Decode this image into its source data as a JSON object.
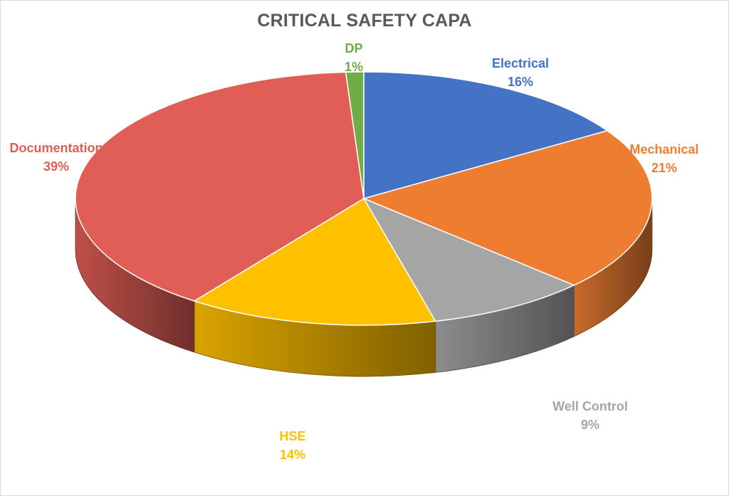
{
  "chart_data": {
    "type": "pie",
    "title": "CRITICAL SAFETY CAPA",
    "style": "3d",
    "labels_show": [
      "category",
      "percent"
    ],
    "slices": [
      {
        "label": "Electrical",
        "percent": "16%",
        "value": 16,
        "color": "#4472c4"
      },
      {
        "label": "Mechanical",
        "percent": "21%",
        "value": 21,
        "color": "#ed7d31"
      },
      {
        "label": "Well Control",
        "percent": "9%",
        "value": 9,
        "color": "#a5a5a5"
      },
      {
        "label": "HSE",
        "percent": "14%",
        "value": 14,
        "color": "#ffc000"
      },
      {
        "label": "Documentation",
        "percent": "39%",
        "value": 39,
        "color": "#e05e55"
      },
      {
        "label": "DP",
        "percent": "1%",
        "value": 1,
        "color": "#70ad47"
      }
    ]
  }
}
